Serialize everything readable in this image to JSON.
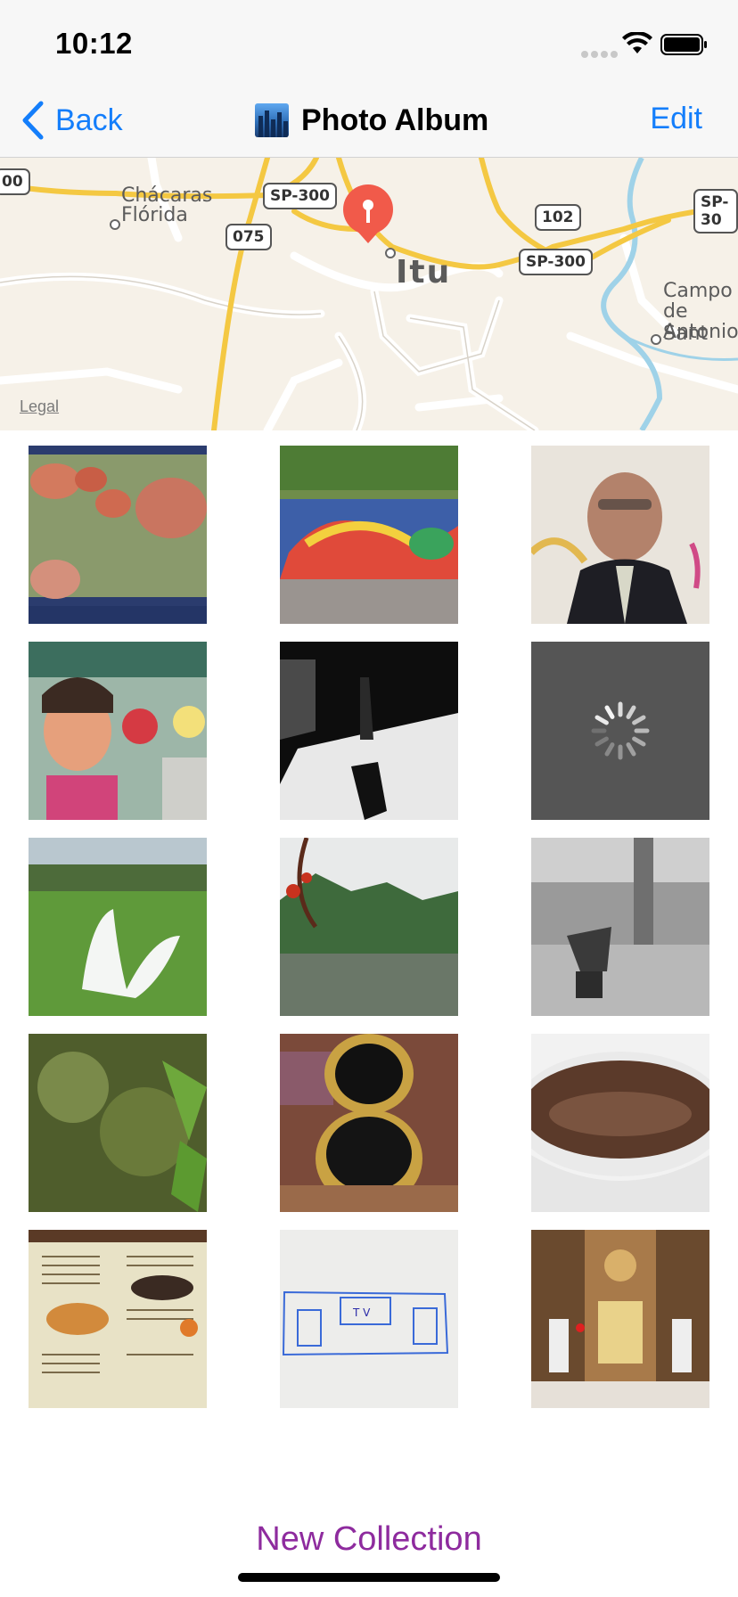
{
  "status_bar": {
    "time": "10:12"
  },
  "nav": {
    "back_label": "Back",
    "title": "Photo Album",
    "edit_label": "Edit"
  },
  "map": {
    "labels": {
      "chacaras": "Chácaras",
      "florida": "Flórida",
      "city": "Itu",
      "campo": "Campo",
      "de_sant": "de Sant",
      "antonio": "Antonio"
    },
    "shields": {
      "sp300_a": "SP-300",
      "sp300_b": "SP-300",
      "sp30_edge": "SP-30",
      "r075": "075",
      "r102": "102",
      "left_edge": "00"
    },
    "legal": "Legal"
  },
  "photos": [
    {
      "subject": "raw sausages on green plate"
    },
    {
      "subject": "graffiti wall with plants"
    },
    {
      "subject": "portrait of man in suit"
    },
    {
      "subject": "graffiti girl and skate"
    },
    {
      "subject": "black and white silhouette"
    },
    {
      "subject": "loading placeholder",
      "loading": true
    },
    {
      "subject": "white feather on grass"
    },
    {
      "subject": "lake with pine trees"
    },
    {
      "subject": "man at railing city view"
    },
    {
      "subject": "dew on spider web"
    },
    {
      "subject": "golden open box"
    },
    {
      "subject": "bowl of soup"
    },
    {
      "subject": "menu card"
    },
    {
      "subject": "tv drawing on paper"
    },
    {
      "subject": "church altar"
    }
  ],
  "bottom": {
    "new_collection": "New Collection"
  }
}
